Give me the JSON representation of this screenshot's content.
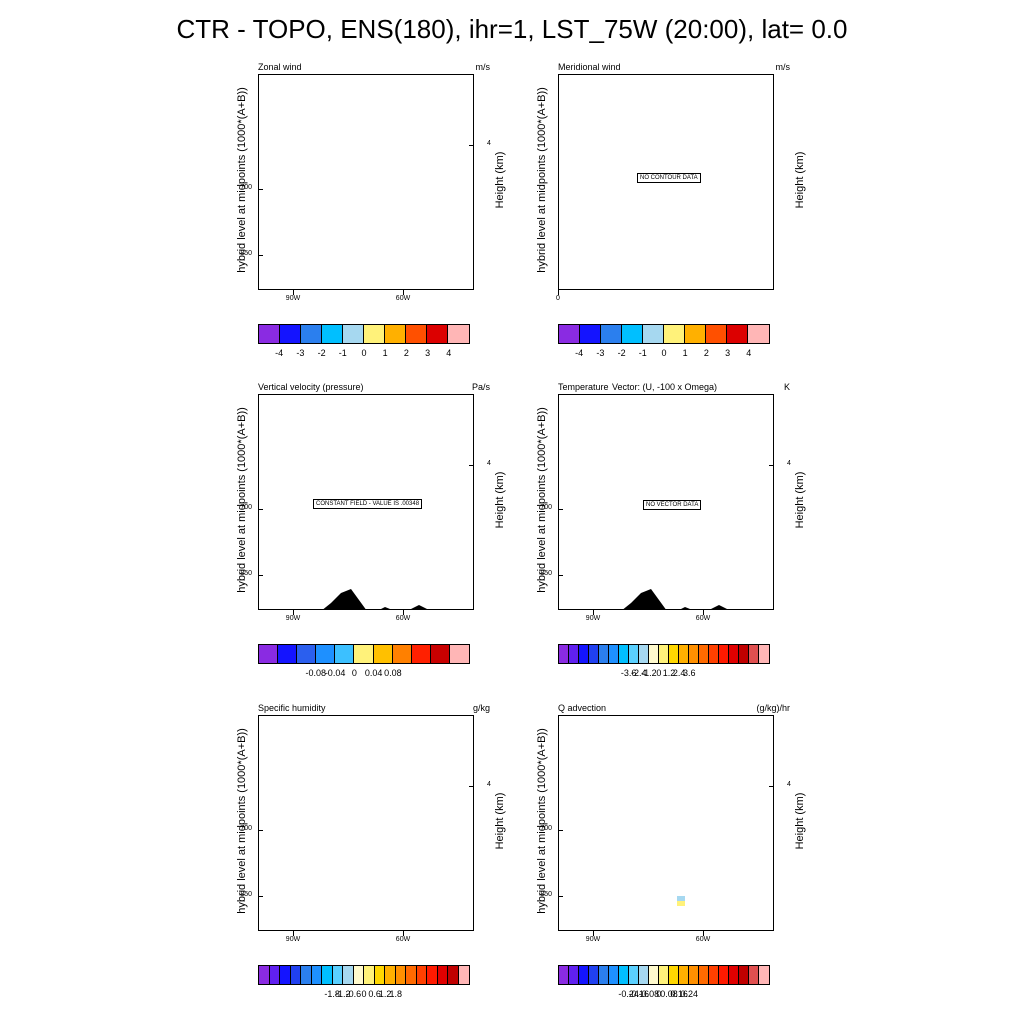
{
  "title": "CTR - TOPO, ENS(180), ihr=1, LST_75W (20:00), lat=  0.0",
  "panels": [
    {
      "id": "zonal",
      "title_left": "Zonal wind",
      "title_right": "m/s",
      "ylabel_left": "hybrid level at midpoints (1000*(A+B))",
      "ylabel_right": "Height (km)",
      "yticks": [
        "700",
        "850"
      ],
      "yticks_right": [
        "4"
      ],
      "xticks": [
        "90W",
        "60W"
      ],
      "message": "",
      "terrain": false,
      "colorbar": {
        "colors": [
          "#8a2be2",
          "#1414ff",
          "#2b7fee",
          "#00bfff",
          "#a6d8f0",
          "#fff27a",
          "#ffb000",
          "#ff5000",
          "#dc0000",
          "#ffb6b6"
        ],
        "labels": [
          "-4",
          "-3",
          "-2",
          "-1",
          "0",
          "1",
          "2",
          "3",
          "4"
        ]
      }
    },
    {
      "id": "meridional",
      "title_left": "Meridional wind",
      "title_right": "m/s",
      "ylabel_left": "hybrid level at midpoints (1000*(A+B))",
      "ylabel_right": "Height (km)",
      "yticks": [],
      "yticks_right": [],
      "xticks": [
        "0"
      ],
      "message": "NO CONTOUR DATA",
      "terrain": false,
      "colorbar": {
        "colors": [
          "#8a2be2",
          "#1414ff",
          "#2b7fee",
          "#00bfff",
          "#a6d8f0",
          "#fff27a",
          "#ffb000",
          "#ff5000",
          "#dc0000",
          "#ffb6b6"
        ],
        "labels": [
          "-4",
          "-3",
          "-2",
          "-1",
          "0",
          "1",
          "2",
          "3",
          "4"
        ]
      }
    },
    {
      "id": "omega",
      "title_left": "Vertical velocity (pressure)",
      "title_right": "Pa/s",
      "ylabel_left": "hybrid level at midpoints (1000*(A+B))",
      "ylabel_right": "Height (km)",
      "yticks": [
        "700",
        "850"
      ],
      "yticks_right": [
        "4"
      ],
      "xticks": [
        "90W",
        "60W"
      ],
      "message": "CONSTANT FIELD - VALUE IS .00348",
      "terrain": true,
      "colorbar": {
        "colors": [
          "#8a2be2",
          "#1414ff",
          "#2b5fee",
          "#1e90ff",
          "#3cc0ff",
          "#fff27a",
          "#ffc000",
          "#ff8000",
          "#ff2000",
          "#c80000",
          "#ffb6b6"
        ],
        "labels": [
          "-0.08",
          "-0.04",
          "0",
          "0.04",
          "0.08"
        ]
      }
    },
    {
      "id": "temperature",
      "title_left": "Temperature",
      "title_mid": "Vector: (U, -100 x Omega)",
      "title_right": "K",
      "ylabel_left": "hybrid level at midpoints (1000*(A+B))",
      "ylabel_right": "Height (km)",
      "yticks": [
        "700",
        "850"
      ],
      "yticks_right": [
        "4"
      ],
      "xticks": [
        "90W",
        "60W"
      ],
      "message": "NO VECTOR DATA",
      "terrain": true,
      "colorbar": {
        "colors": [
          "#8a2be2",
          "#6020f0",
          "#1414ff",
          "#2040f0",
          "#2b7fee",
          "#1e90ff",
          "#00bfff",
          "#5ad0ff",
          "#a6d8f0",
          "#fffacd",
          "#fff27a",
          "#ffd700",
          "#ffb000",
          "#ff9000",
          "#ff6a00",
          "#ff4000",
          "#ff1a00",
          "#e00000",
          "#c00000",
          "#e05050",
          "#ffb6b6"
        ],
        "labels": [
          "-3.6",
          "-2.4",
          "-1.2",
          "0",
          "1.2",
          "2.4",
          "3.6"
        ]
      }
    },
    {
      "id": "q",
      "title_left": "Specific humidity",
      "title_right": "g/kg",
      "ylabel_left": "hybrid level at midpoints (1000*(A+B))",
      "ylabel_right": "Height (km)",
      "yticks": [
        "700",
        "850"
      ],
      "yticks_right": [
        "4"
      ],
      "xticks": [
        "90W",
        "60W"
      ],
      "message": "",
      "terrain": false,
      "colorbar": {
        "colors": [
          "#8a2be2",
          "#6020f0",
          "#1414ff",
          "#2040f0",
          "#2b7fee",
          "#1e90ff",
          "#00bfff",
          "#5ad0ff",
          "#a6d8f0",
          "#fffacd",
          "#fff27a",
          "#ffd700",
          "#ffb000",
          "#ff9000",
          "#ff6a00",
          "#ff4000",
          "#ff1a00",
          "#e00000",
          "#c00000",
          "#ffb6b6"
        ],
        "labels": [
          "-1.8",
          "-1.2",
          "-0.6",
          "0",
          "0.6",
          "1.2",
          "1.8"
        ]
      }
    },
    {
      "id": "qadv",
      "title_left": "Q advection",
      "title_right": "(g/kg)/hr",
      "ylabel_left": "hybrid level at midpoints (1000*(A+B))",
      "ylabel_right": "Height (km)",
      "yticks": [
        "700",
        "850"
      ],
      "yticks_right": [
        "4"
      ],
      "xticks": [
        "90W",
        "60W"
      ],
      "message": "",
      "terrain": false,
      "extra": true,
      "colorbar": {
        "colors": [
          "#8a2be2",
          "#6020f0",
          "#1414ff",
          "#2040f0",
          "#2b7fee",
          "#1e90ff",
          "#00bfff",
          "#5ad0ff",
          "#a6d8f0",
          "#fffacd",
          "#fff27a",
          "#ffd700",
          "#ffb000",
          "#ff9000",
          "#ff6a00",
          "#ff4000",
          "#ff1a00",
          "#e00000",
          "#c00000",
          "#e05050",
          "#ffb6b6"
        ],
        "labels": [
          "-0.24",
          "-0.16",
          "-0.08",
          "0",
          "0.08",
          "0.16",
          "0.24"
        ]
      }
    }
  ]
}
